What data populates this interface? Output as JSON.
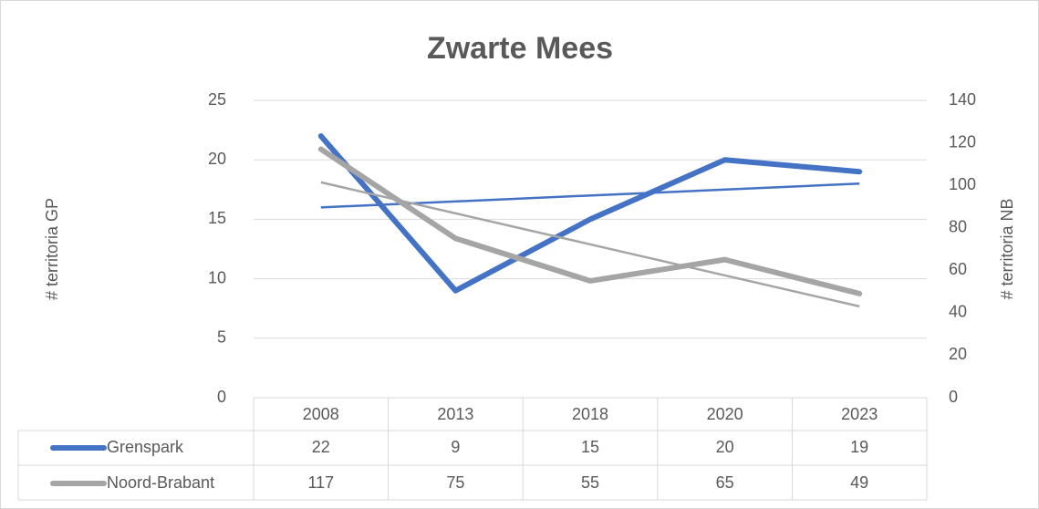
{
  "chart_data": {
    "type": "line",
    "title": "Zwarte Mees",
    "categories": [
      "2008",
      "2013",
      "2018",
      "2020",
      "2023"
    ],
    "y_label": "# territoria GP",
    "y2_label": "# territoria NB",
    "ylim": [
      0,
      25
    ],
    "yticks": [
      0,
      5,
      10,
      15,
      20,
      25
    ],
    "y2lim": [
      0,
      140
    ],
    "y2ticks": [
      0,
      20,
      40,
      60,
      80,
      100,
      120,
      140
    ],
    "grid": true,
    "trendline": true,
    "data_table": true,
    "series": [
      {
        "name": "Grenspark",
        "color": "#4472c4",
        "values": [
          22,
          9,
          15,
          20,
          19
        ]
      },
      {
        "name": "Noord-Brabant",
        "color": "#a5a5a5",
        "values": [
          117,
          75,
          55,
          65,
          49
        ],
        "axis": "y2"
      }
    ]
  }
}
